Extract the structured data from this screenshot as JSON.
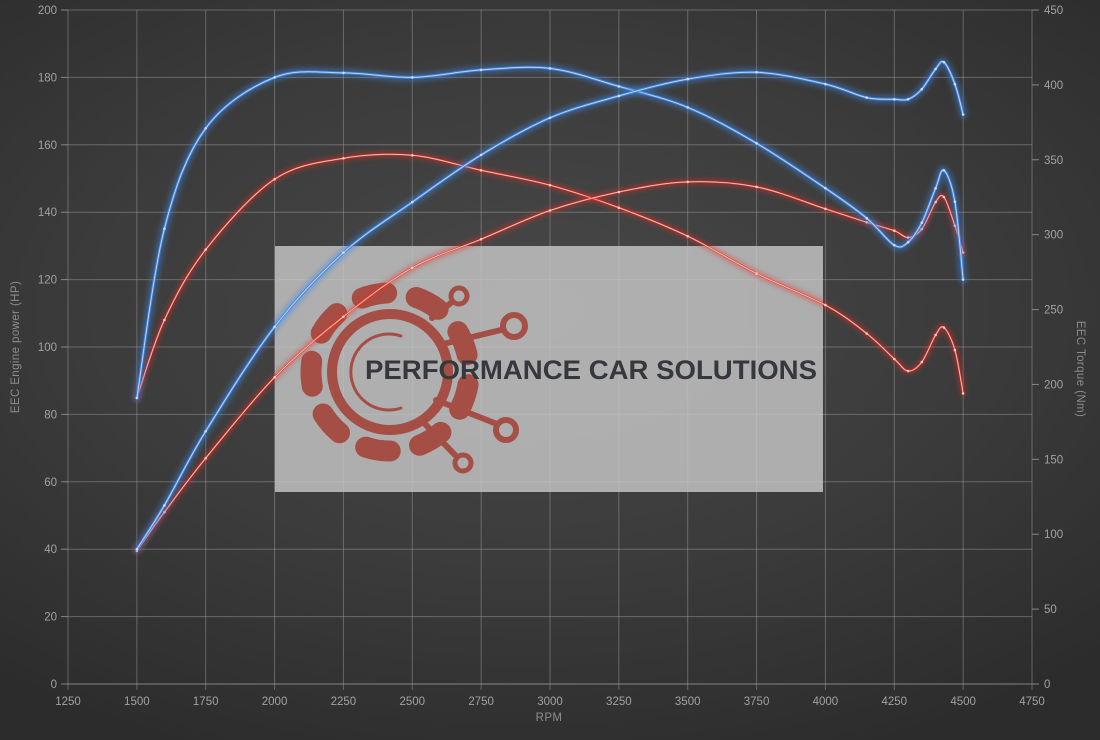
{
  "chart": {
    "x_axis": {
      "label": "RPM",
      "min": 1250,
      "max": 4750,
      "tick_step": 250,
      "ticks": [
        1250,
        1500,
        1750,
        2000,
        2250,
        2500,
        2750,
        3000,
        3250,
        3500,
        3750,
        4000,
        4250,
        4500,
        4750
      ]
    },
    "y_left": {
      "label": "EEC Engine power (HP)",
      "min": 0,
      "max": 200,
      "tick_step": 20,
      "ticks": [
        0,
        20,
        40,
        60,
        80,
        100,
        120,
        140,
        160,
        180,
        200
      ]
    },
    "y_right": {
      "label": "EEC Torque (Nm)",
      "min": 0,
      "max": 450,
      "tick_step": 50,
      "ticks": [
        0,
        50,
        100,
        150,
        200,
        250,
        300,
        350,
        400,
        450
      ]
    }
  },
  "watermark": {
    "text": "PERFORMANCE CAR SOLUTIONS",
    "logo": "gear-circuit-icon",
    "box_color": "#c7c7c7",
    "logo_color": "#a5463d",
    "text_color": "#35383d"
  },
  "colors": {
    "background": "#3b3b3b",
    "grid": "#9a9a9a",
    "tick_text": "#a2a2a2",
    "axis_title": "#8d8d8d",
    "series_blue": "#3f86e0",
    "series_red": "#e03228",
    "blue_highlight": "#cfe2fb",
    "red_highlight": "#ffd2c9"
  },
  "chart_data": {
    "type": "line",
    "title": "",
    "xlabel": "RPM",
    "ylabel_left": "EEC Engine power (HP)",
    "ylabel_right": "EEC Torque (Nm)",
    "x_range": [
      1250,
      4750
    ],
    "y_left_range": [
      0,
      200
    ],
    "y_right_range": [
      0,
      450
    ],
    "grid": true,
    "legend": "none",
    "x": [
      1500,
      1600,
      1750,
      2000,
      2250,
      2500,
      2750,
      3000,
      3250,
      3500,
      3750,
      4000,
      4150,
      4250,
      4300,
      4350,
      4400,
      4430,
      4470,
      4500
    ],
    "series": [
      {
        "name": "torque-red",
        "axis": "right",
        "unit": "Nm",
        "color": "#e03228",
        "highlight": "#ffd2c9",
        "values": [
          191,
          243,
          290,
          337,
          351,
          353,
          343,
          333,
          318,
          299,
          274,
          253,
          234,
          217,
          209,
          215,
          233,
          238,
          223,
          194
        ]
      },
      {
        "name": "power-red",
        "axis": "left",
        "unit": "HP",
        "color": "#e03228",
        "highlight": "#ffd2c9",
        "values": [
          39.5,
          51,
          67,
          91,
          109,
          123.5,
          132,
          140.5,
          146,
          149,
          147.5,
          141,
          137,
          134.5,
          132.5,
          135,
          143,
          144.5,
          136,
          128
        ]
      },
      {
        "name": "torque-blue",
        "axis": "right",
        "unit": "Nm",
        "color": "#3f86e0",
        "highlight": "#cfe2fb",
        "values": [
          191,
          304,
          371,
          405,
          408,
          405,
          410,
          411,
          399,
          385,
          361,
          331,
          311,
          293,
          295,
          308,
          331,
          343,
          322,
          270
        ]
      },
      {
        "name": "power-blue",
        "axis": "left",
        "unit": "HP",
        "color": "#3f86e0",
        "highlight": "#cfe2fb",
        "values": [
          40,
          53,
          75,
          106,
          128,
          143,
          157,
          168,
          174.5,
          179.5,
          181.5,
          178,
          174,
          173.5,
          173.5,
          176.5,
          182.5,
          184.5,
          178,
          169
        ]
      }
    ]
  }
}
